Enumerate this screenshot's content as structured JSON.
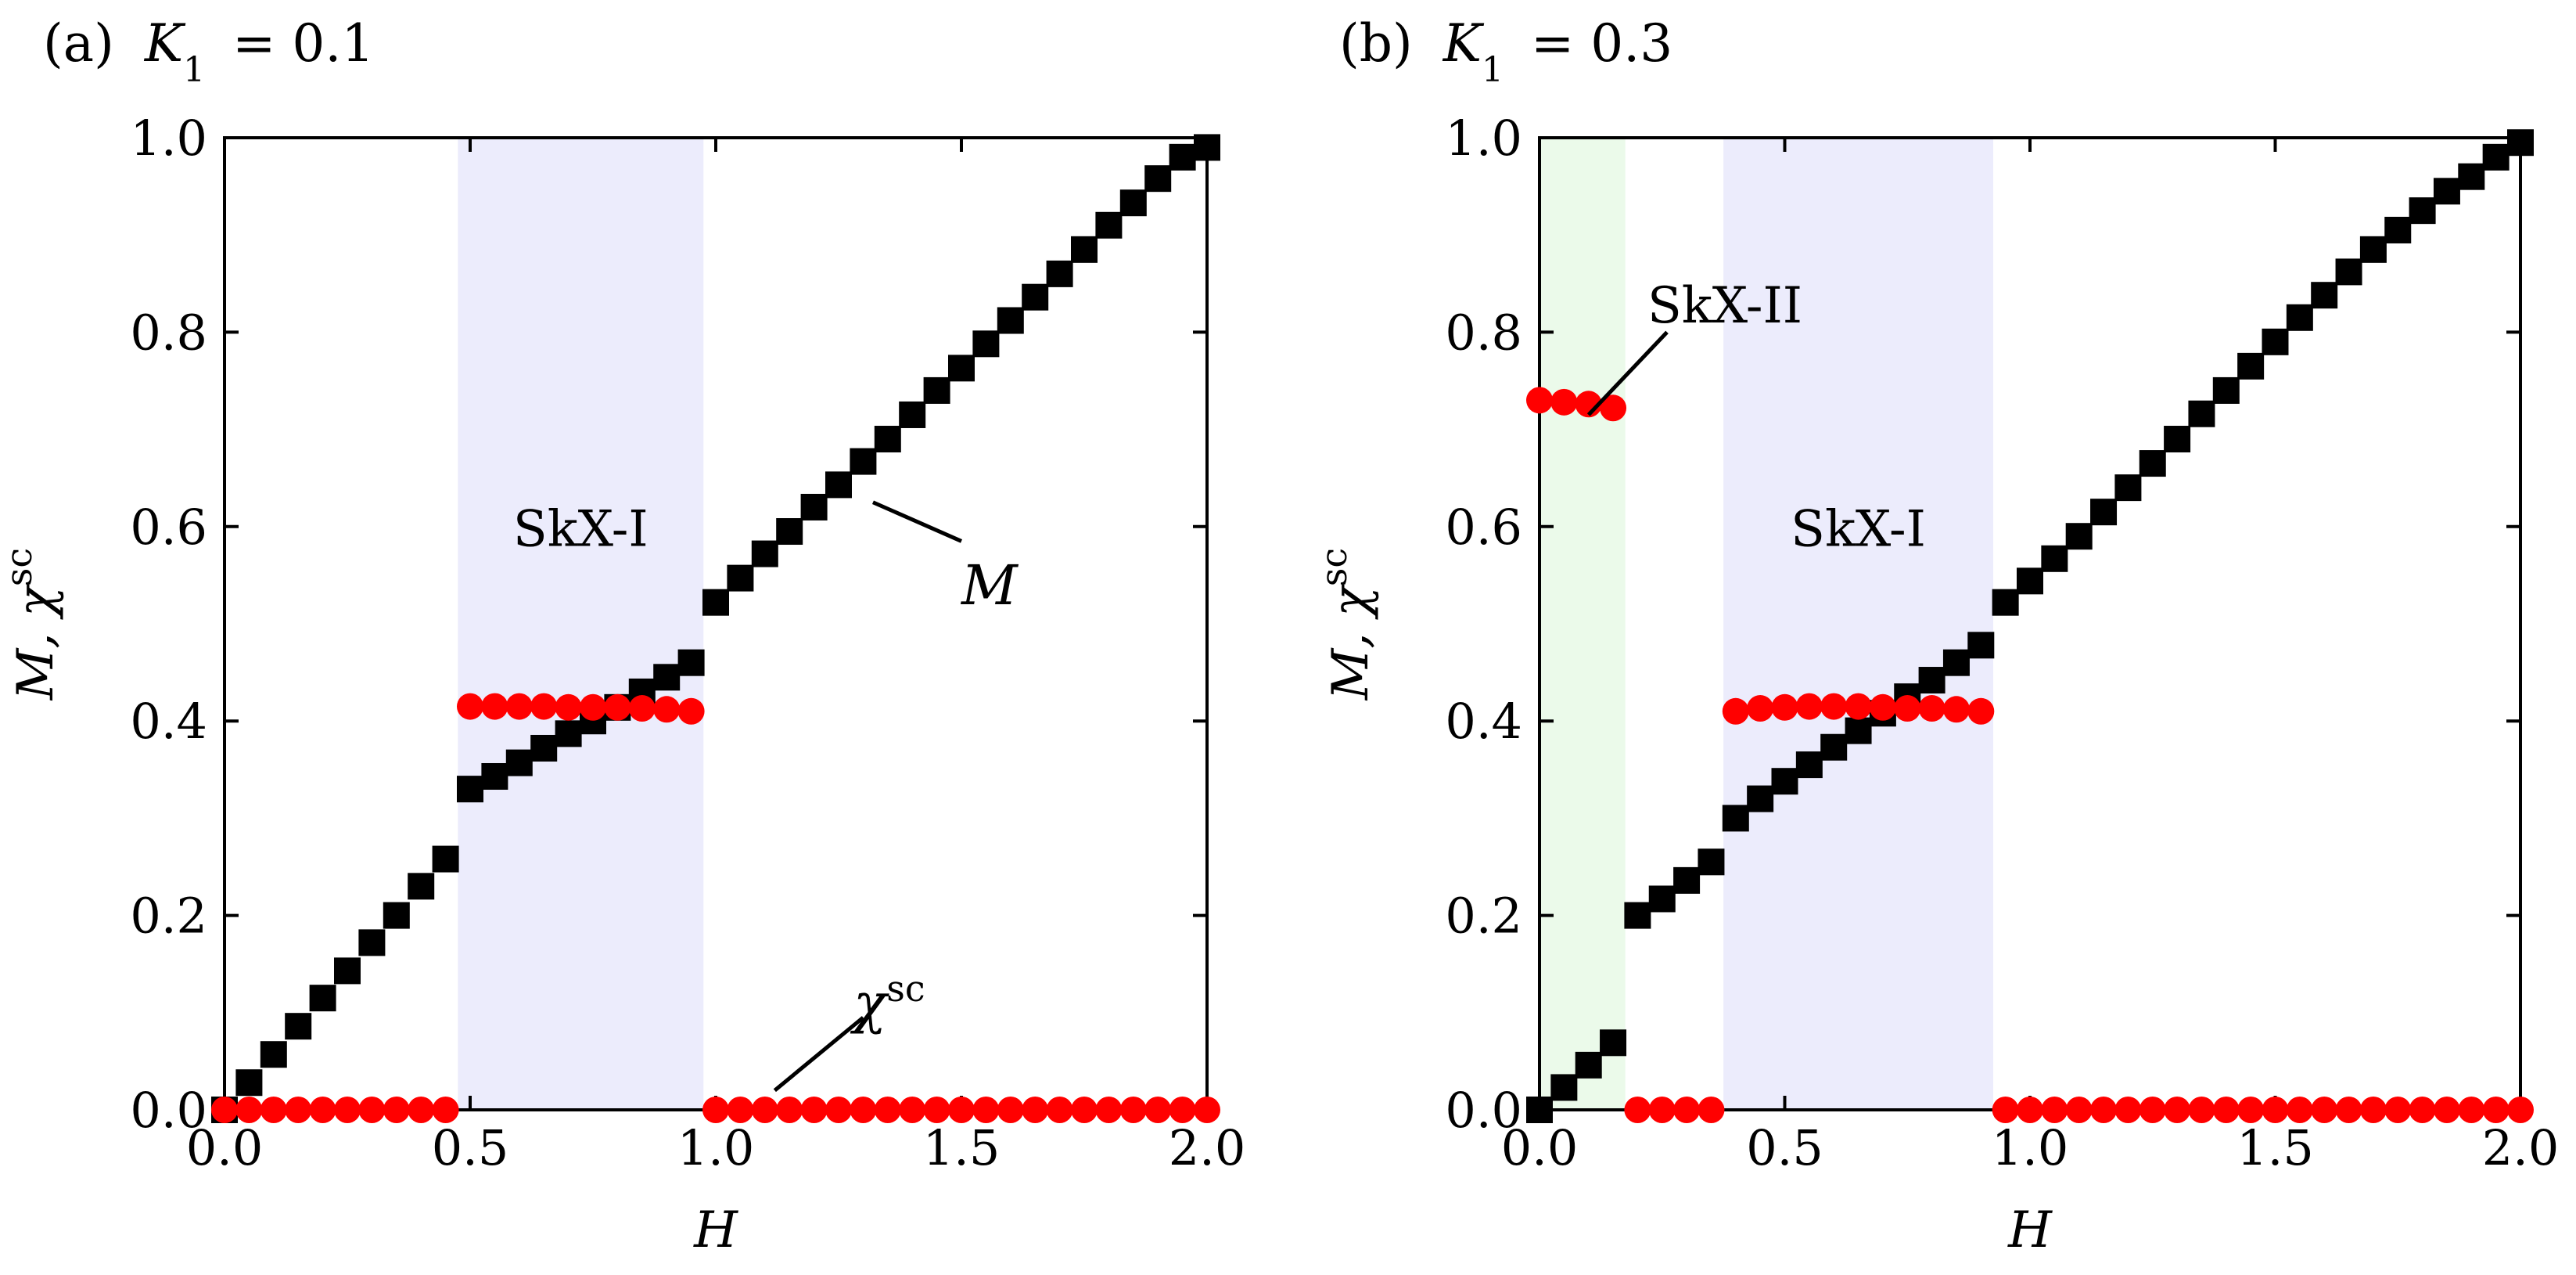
{
  "chart_data": [
    {
      "type": "scatter",
      "panel_label": "(a)",
      "param_symbol": "K",
      "param_subscript": "1",
      "param_value": "= 0.1",
      "xlabel": "H",
      "ylabel_main": "M, χ",
      "ylabel_sup": "sc",
      "xlim": [
        0.0,
        2.0
      ],
      "ylim": [
        0.0,
        1.0
      ],
      "xticks": [
        "0.0",
        "0.5",
        "1.0",
        "1.5",
        "2.0"
      ],
      "yticks": [
        "0.0",
        "0.2",
        "0.4",
        "0.6",
        "0.8",
        "1.0"
      ],
      "regions": [
        {
          "label": "SkX-I",
          "x_range": [
            0.475,
            0.975
          ],
          "color": "#ececfc"
        }
      ],
      "annotations": [
        {
          "text": "M",
          "sup": "",
          "points_to": [
            1.3,
            0.63
          ]
        },
        {
          "text": "χ",
          "sup": "sc",
          "points_to": [
            1.1,
            0.02
          ]
        }
      ],
      "series": [
        {
          "name": "M",
          "marker": "square",
          "color": "#000000",
          "x": [
            0.0,
            0.05,
            0.1,
            0.15,
            0.2,
            0.25,
            0.3,
            0.35,
            0.4,
            0.45,
            0.5,
            0.55,
            0.6,
            0.65,
            0.7,
            0.75,
            0.8,
            0.85,
            0.9,
            0.95,
            1.0,
            1.05,
            1.1,
            1.15,
            1.2,
            1.25,
            1.3,
            1.35,
            1.4,
            1.45,
            1.5,
            1.55,
            1.6,
            1.65,
            1.7,
            1.75,
            1.8,
            1.85,
            1.9,
            1.95,
            2.0
          ],
          "y": [
            0.0,
            0.028,
            0.057,
            0.086,
            0.115,
            0.143,
            0.172,
            0.2,
            0.23,
            0.258,
            0.33,
            0.343,
            0.357,
            0.372,
            0.387,
            0.4,
            0.414,
            0.43,
            0.445,
            0.46,
            0.522,
            0.547,
            0.572,
            0.595,
            0.62,
            0.643,
            0.667,
            0.69,
            0.715,
            0.74,
            0.763,
            0.788,
            0.812,
            0.836,
            0.86,
            0.885,
            0.91,
            0.933,
            0.958,
            0.98,
            0.99
          ]
        },
        {
          "name": "χsc",
          "marker": "circle",
          "color": "#ff0000",
          "x": [
            0.0,
            0.05,
            0.1,
            0.15,
            0.2,
            0.25,
            0.3,
            0.35,
            0.4,
            0.45,
            0.5,
            0.55,
            0.6,
            0.65,
            0.7,
            0.75,
            0.8,
            0.85,
            0.9,
            0.95,
            1.0,
            1.05,
            1.1,
            1.15,
            1.2,
            1.25,
            1.3,
            1.35,
            1.4,
            1.45,
            1.5,
            1.55,
            1.6,
            1.65,
            1.7,
            1.75,
            1.8,
            1.85,
            1.9,
            1.95,
            2.0
          ],
          "y": [
            0.0,
            0.0,
            0.0,
            0.0,
            0.0,
            0.0,
            0.0,
            0.0,
            0.0,
            0.0,
            0.415,
            0.415,
            0.415,
            0.415,
            0.414,
            0.414,
            0.414,
            0.413,
            0.412,
            0.41,
            0.0,
            0.0,
            0.0,
            0.0,
            0.0,
            0.0,
            0.0,
            0.0,
            0.0,
            0.0,
            0.0,
            0.0,
            0.0,
            0.0,
            0.0,
            0.0,
            0.0,
            0.0,
            0.0,
            0.0,
            0.0
          ]
        }
      ]
    },
    {
      "type": "scatter",
      "panel_label": "(b)",
      "param_symbol": "K",
      "param_subscript": "1",
      "param_value": "= 0.3",
      "xlabel": "H",
      "ylabel_main": "M, χ",
      "ylabel_sup": "sc",
      "xlim": [
        0.0,
        2.0
      ],
      "ylim": [
        0.0,
        1.0
      ],
      "xticks": [
        "0.0",
        "0.5",
        "1.0",
        "1.5",
        "2.0"
      ],
      "yticks": [
        "0.0",
        "0.2",
        "0.4",
        "0.6",
        "0.8",
        "1.0"
      ],
      "regions": [
        {
          "label": "SkX-II",
          "x_range": [
            0.0,
            0.175
          ],
          "color": "#ebfaea"
        },
        {
          "label": "SkX-I",
          "x_range": [
            0.375,
            0.925
          ],
          "color": "#ececfc"
        }
      ],
      "annotations": [
        {
          "text": "SkX-II",
          "sup": "",
          "points_to": [
            0.1,
            0.72
          ]
        }
      ],
      "series": [
        {
          "name": "M",
          "marker": "square",
          "color": "#000000",
          "x": [
            0.0,
            0.05,
            0.1,
            0.15,
            0.2,
            0.25,
            0.3,
            0.35,
            0.4,
            0.45,
            0.5,
            0.55,
            0.6,
            0.65,
            0.7,
            0.75,
            0.8,
            0.85,
            0.9,
            0.95,
            1.0,
            1.05,
            1.1,
            1.15,
            1.2,
            1.25,
            1.3,
            1.35,
            1.4,
            1.45,
            1.5,
            1.55,
            1.6,
            1.65,
            1.7,
            1.75,
            1.8,
            1.85,
            1.9,
            1.95,
            2.0
          ],
          "y": [
            0.0,
            0.023,
            0.046,
            0.069,
            0.2,
            0.217,
            0.236,
            0.255,
            0.3,
            0.32,
            0.338,
            0.355,
            0.373,
            0.39,
            0.408,
            0.425,
            0.442,
            0.46,
            0.478,
            0.522,
            0.544,
            0.567,
            0.59,
            0.615,
            0.64,
            0.665,
            0.69,
            0.716,
            0.74,
            0.765,
            0.79,
            0.815,
            0.838,
            0.862,
            0.885,
            0.905,
            0.925,
            0.945,
            0.96,
            0.98,
            0.995
          ]
        },
        {
          "name": "χsc",
          "marker": "circle",
          "color": "#ff0000",
          "x": [
            0.0,
            0.05,
            0.1,
            0.15,
            0.2,
            0.25,
            0.3,
            0.35,
            0.4,
            0.45,
            0.5,
            0.55,
            0.6,
            0.65,
            0.7,
            0.75,
            0.8,
            0.85,
            0.9,
            0.95,
            1.0,
            1.05,
            1.1,
            1.15,
            1.2,
            1.25,
            1.3,
            1.35,
            1.4,
            1.45,
            1.5,
            1.55,
            1.6,
            1.65,
            1.7,
            1.75,
            1.8,
            1.85,
            1.9,
            1.95,
            2.0
          ],
          "y": [
            0.73,
            0.728,
            0.726,
            0.722,
            0.0,
            0.0,
            0.0,
            0.0,
            0.41,
            0.413,
            0.414,
            0.415,
            0.415,
            0.415,
            0.414,
            0.413,
            0.413,
            0.412,
            0.41,
            0.0,
            0.0,
            0.0,
            0.0,
            0.0,
            0.0,
            0.0,
            0.0,
            0.0,
            0.0,
            0.0,
            0.0,
            0.0,
            0.0,
            0.0,
            0.0,
            0.0,
            0.0,
            0.0,
            0.0,
            0.0,
            0.0
          ]
        }
      ]
    }
  ]
}
